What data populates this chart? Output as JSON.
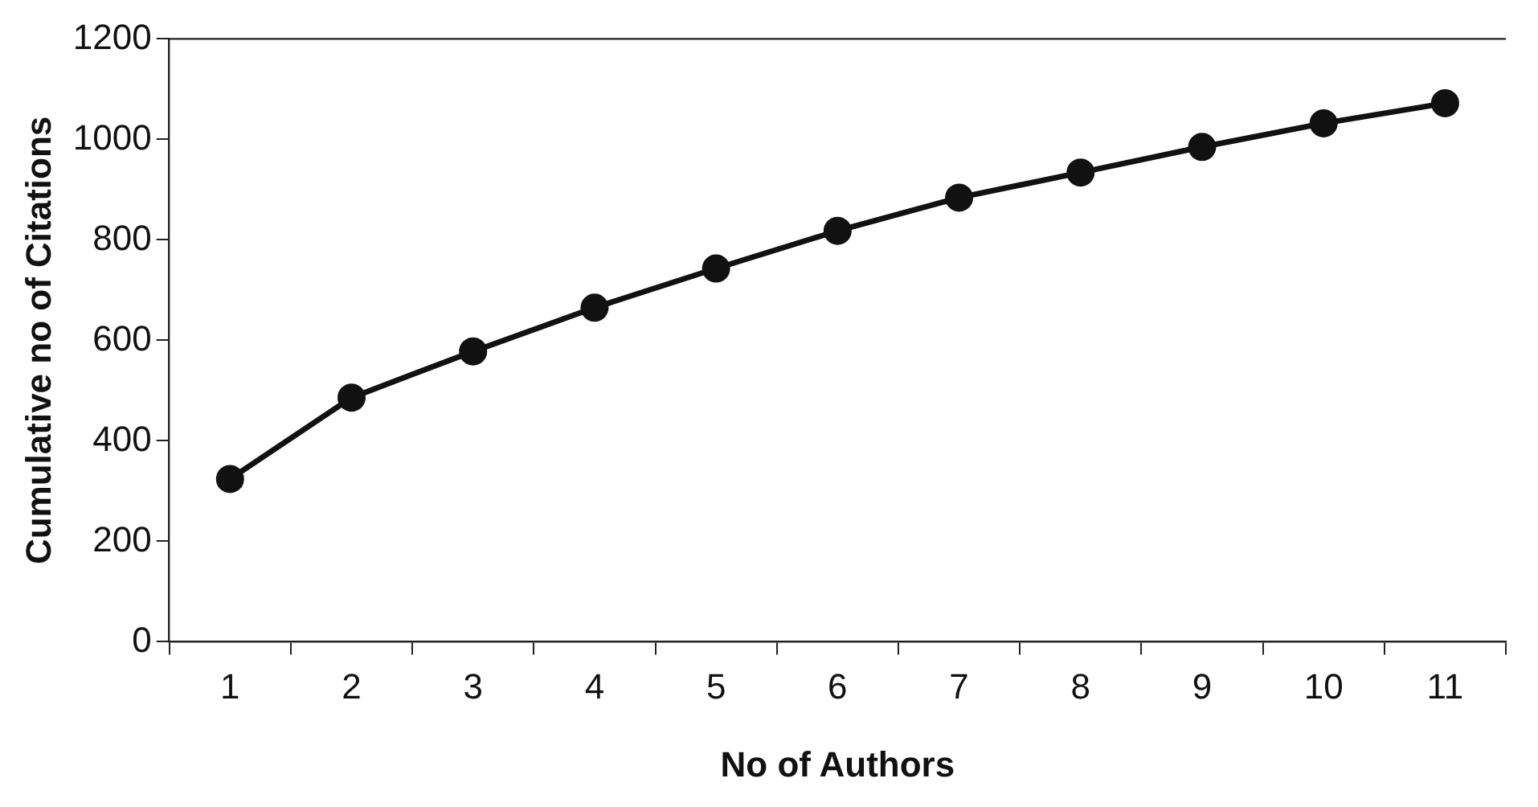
{
  "chart_data": {
    "type": "line",
    "xlabel": "No of Authors",
    "ylabel": "Cumulative no of Citations",
    "categories": [
      "1",
      "2",
      "3",
      "4",
      "5",
      "6",
      "7",
      "8",
      "9",
      "10",
      "11"
    ],
    "series": [
      {
        "color": "#111111",
        "values": [
          324,
          486,
          578,
          665,
          743,
          818,
          884,
          934,
          985,
          1032,
          1072
        ]
      }
    ],
    "ylim": [
      0,
      1200
    ],
    "yticks": [
      0,
      200,
      400,
      600,
      800,
      1000,
      1200
    ],
    "grid": false,
    "legend": false,
    "marker": "circle",
    "line_style": "solid"
  }
}
